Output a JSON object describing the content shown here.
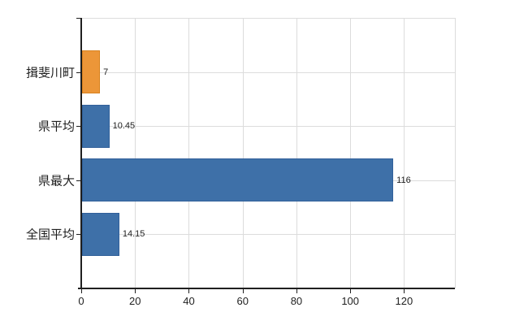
{
  "chart_data": {
    "type": "bar",
    "orientation": "horizontal",
    "title": "",
    "categories": [
      "揖斐川町",
      "県平均",
      "県最大",
      "全国平均"
    ],
    "values": [
      7,
      10.45,
      116,
      14.15
    ],
    "value_labels": [
      "7",
      "10.45",
      "116",
      "14.15"
    ],
    "x_ticks": [
      0,
      20,
      40,
      60,
      80,
      100,
      120
    ],
    "x_tick_labels": [
      "0",
      "20",
      "40",
      "60",
      "80",
      "100",
      "120"
    ],
    "xlim": [
      0,
      138.9
    ],
    "grid": true,
    "legend": "none",
    "colors": {
      "background": "#ffffff",
      "bar_fill": [
        "#EC9638",
        "#3E70A8",
        "#3E70A8",
        "#3E70A8"
      ],
      "bar_border": [
        "#D8821F",
        "#31609A",
        "#31609A",
        "#31609A"
      ],
      "gridline": "#dcdcdc",
      "axis": "#1f1f1f",
      "text": "#1f1f1f"
    }
  }
}
